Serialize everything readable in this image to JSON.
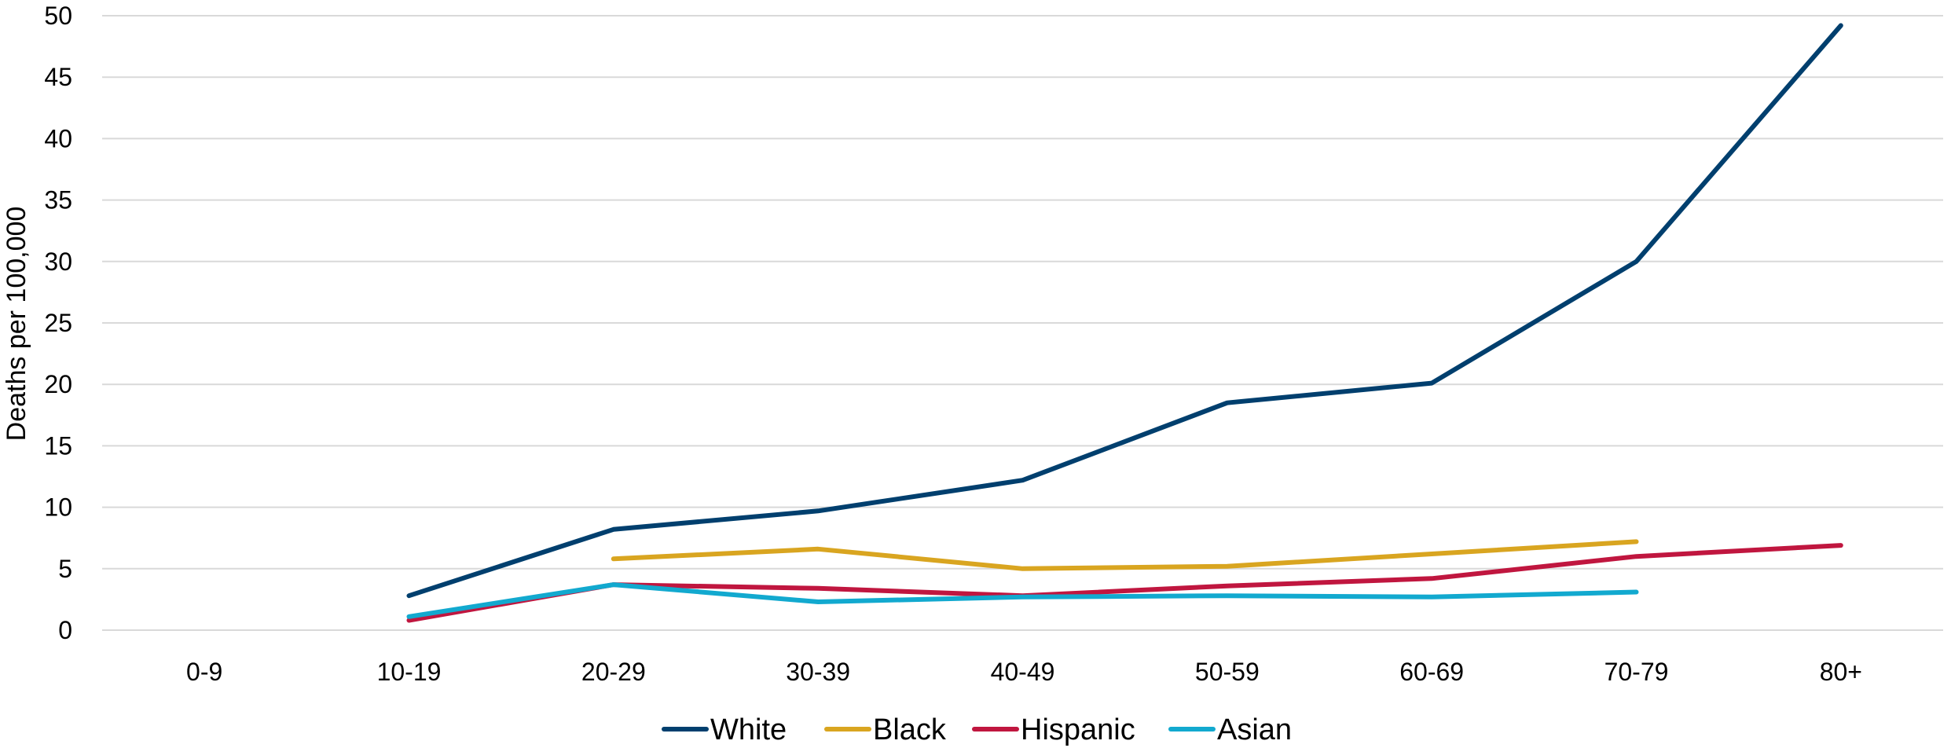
{
  "chart_data": {
    "type": "line",
    "title": "",
    "xlabel": "",
    "ylabel": "Deaths per 100,000",
    "ylim": [
      0,
      50
    ],
    "yticks": [
      0,
      5,
      10,
      15,
      20,
      25,
      30,
      35,
      40,
      45,
      50
    ],
    "grid": true,
    "legend_position": "bottom",
    "categories": [
      "0-9",
      "10-19",
      "20-29",
      "30-39",
      "40-49",
      "50-59",
      "60-69",
      "70-79",
      "80+"
    ],
    "series": [
      {
        "name": "White",
        "color": "#003f6e",
        "values": [
          null,
          2.8,
          8.2,
          9.7,
          12.2,
          18.5,
          20.1,
          30.0,
          49.2
        ]
      },
      {
        "name": "Black",
        "color": "#d9a520",
        "values": [
          null,
          null,
          5.8,
          6.6,
          5.0,
          5.2,
          6.2,
          7.2,
          null
        ]
      },
      {
        "name": "Hispanic",
        "color": "#c0163f",
        "values": [
          null,
          0.8,
          3.7,
          3.4,
          2.8,
          3.6,
          4.2,
          6.0,
          6.9
        ]
      },
      {
        "name": "Asian",
        "color": "#12a9cf",
        "values": [
          null,
          1.1,
          3.7,
          2.3,
          2.7,
          2.8,
          2.7,
          3.1,
          null
        ]
      }
    ]
  }
}
